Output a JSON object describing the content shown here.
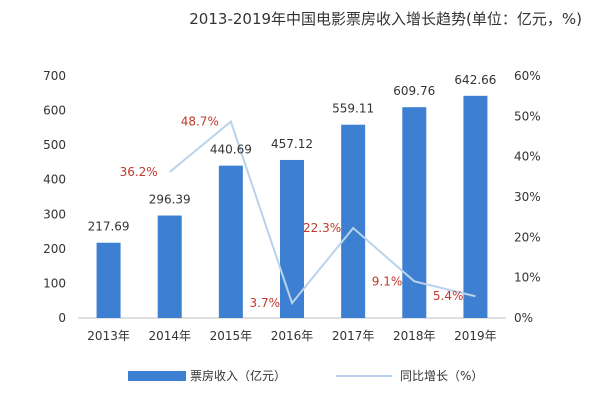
{
  "chart_data": {
    "type": "bar",
    "title": "2013-2019年中国电影票房收入增长趋势(单位：亿元，%)",
    "categories": [
      "2013年",
      "2014年",
      "2015年",
      "2016年",
      "2017年",
      "2018年",
      "2019年"
    ],
    "series": [
      {
        "name": "票房收入（亿元）",
        "type": "bar",
        "axis": "left",
        "values": [
          217.69,
          296.39,
          440.69,
          457.12,
          559.11,
          609.76,
          642.66
        ],
        "labels": [
          "217.69",
          "296.39",
          "440.69",
          "457.12",
          "559.11",
          "609.76",
          "642.66"
        ]
      },
      {
        "name": "同比增长（%）",
        "type": "line",
        "axis": "right",
        "values": [
          null,
          36.2,
          48.7,
          3.7,
          22.3,
          9.1,
          5.4
        ],
        "labels": [
          "",
          "36.2%",
          "48.7%",
          "3.7%",
          "22.3%",
          "9.1%",
          "5.4%"
        ]
      }
    ],
    "ylim_left": [
      0,
      700
    ],
    "yticks_left": [
      "0",
      "100",
      "200",
      "300",
      "400",
      "500",
      "600",
      "700"
    ],
    "ylim_right": [
      0,
      60
    ],
    "yticks_right": [
      "0%",
      "10%",
      "20%",
      "30%",
      "40%",
      "50%",
      "60%"
    ],
    "legend_position": "bottom",
    "grid": false,
    "colors": {
      "bar": "#3d7fd0",
      "line": "#b9d3ec",
      "pct_label": "#c0392b"
    }
  }
}
